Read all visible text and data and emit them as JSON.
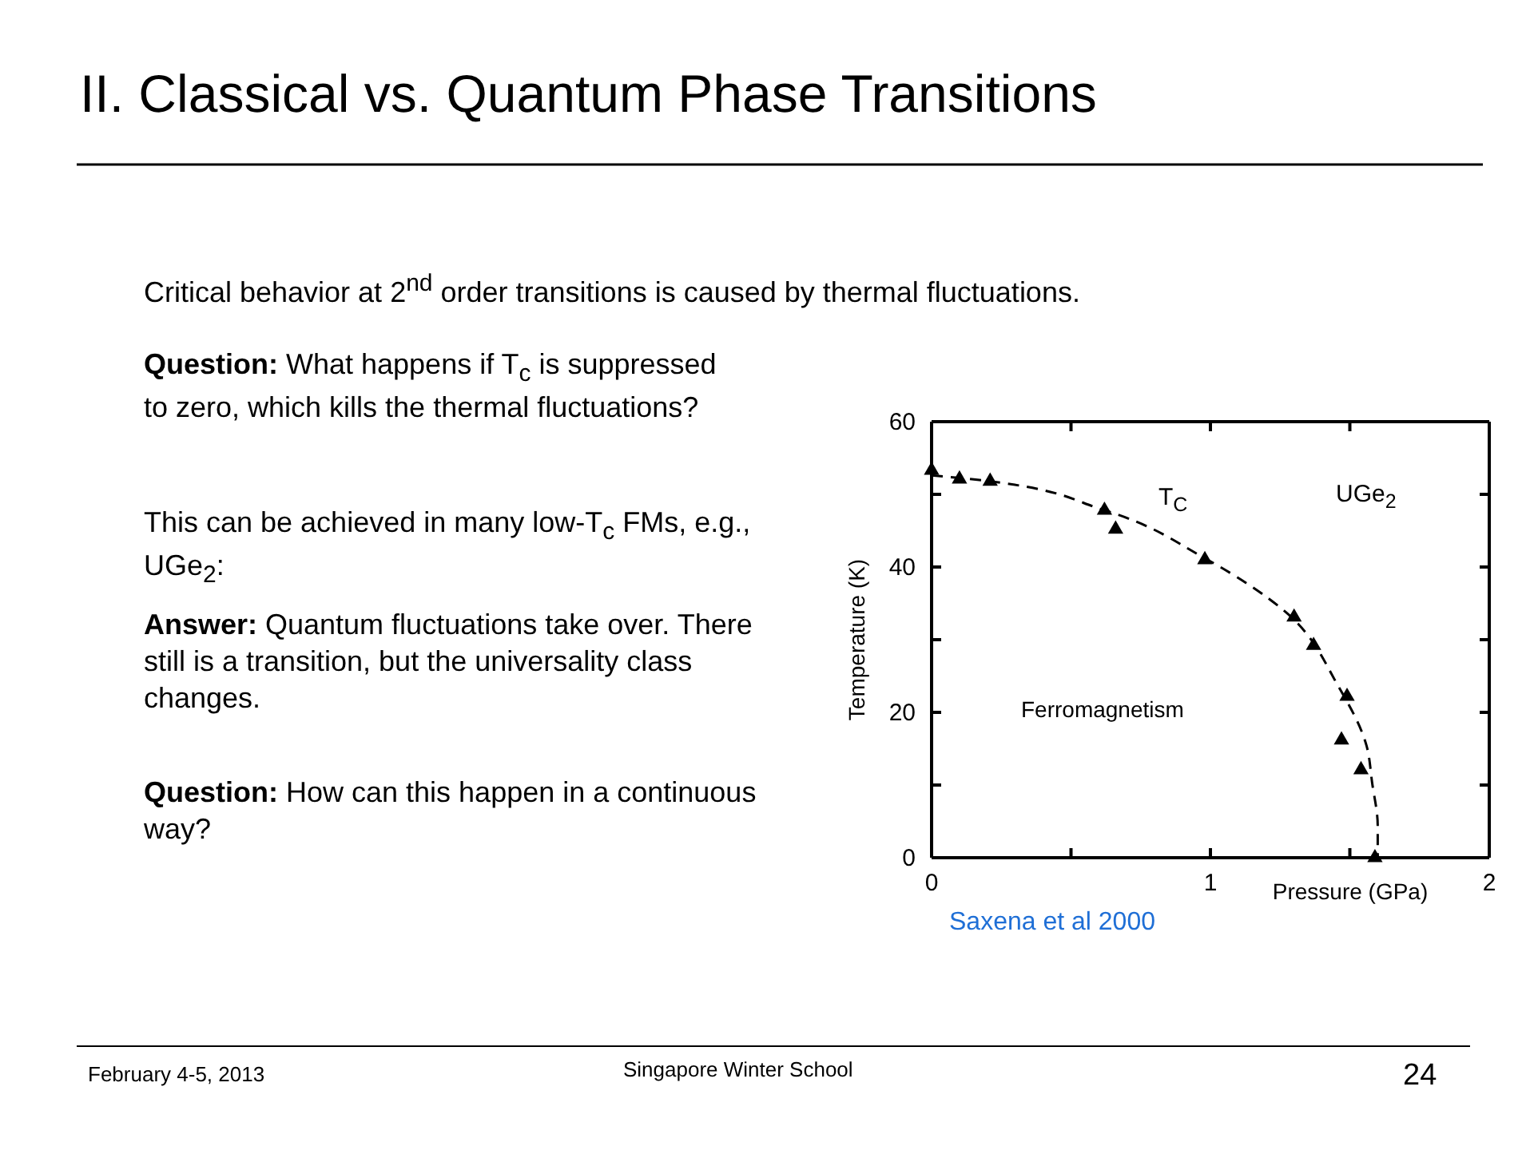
{
  "chart_data": {
    "type": "scatter",
    "title": "II. Classical vs. Quantum Phase Transitions",
    "xlabel": "Pressure (GPa)",
    "ylabel": "Temperature (K)",
    "xlim": [
      0,
      2
    ],
    "xticks": [
      0,
      {
        "value": 0.5,
        "label": null
      },
      1,
      {
        "value": 1.5,
        "label": null
      },
      2
    ],
    "ylim": [
      0,
      60
    ],
    "yticks": [
      0,
      {
        "value": 10,
        "label": null
      },
      20,
      {
        "value": 30,
        "label": null
      },
      40,
      {
        "value": 50,
        "label": null
      },
      60
    ],
    "grid": false,
    "series": [
      {
        "marker": "triangle",
        "color": "#000000",
        "x": [
          0,
          0.1,
          0.21,
          0.62,
          0.66,
          0.98,
          1.3,
          1.37,
          1.49,
          1.47,
          1.54,
          1.59
        ],
        "values": [
          53.3,
          52.1,
          51.8,
          47.8,
          45.2,
          41,
          33.1,
          29.2,
          22.2,
          16.2,
          12.1,
          0
        ]
      },
      {
        "type": "line",
        "marker": "none",
        "line_style": "dashed",
        "color": "#000000",
        "x": [
          0,
          0.21,
          0.62,
          0.98,
          1.27,
          1.46,
          1.56,
          1.58,
          1.6,
          1.6
        ],
        "values": [
          52.6,
          51.8,
          47.8,
          41.2,
          33.8,
          23.5,
          15.4,
          10.3,
          4.4,
          0
        ]
      }
    ],
    "annotations": [
      "T$_{C}$",
      "UGe$_{2}$",
      "Ferromagnetism",
      "Critical behavior at 2$^{nd}$ order transitions is caused by thermal fluctuations.",
      "Question: What happens if T$_{c}$ is suppressed to zero, which kills the thermal fluctuations?",
      "This can be achieved in many low-T$_{c}$ FMs, e.g., UGe$_{2}$:",
      "Answer: Quantum fluctuations take over. There still is a transition, but the universality class changes.",
      "Question: How can this happen in a continuous way?",
      "Saxena et al 2000",
      "February 4-5, 2013",
      "Singapore Winter School",
      "24"
    ]
  }
}
